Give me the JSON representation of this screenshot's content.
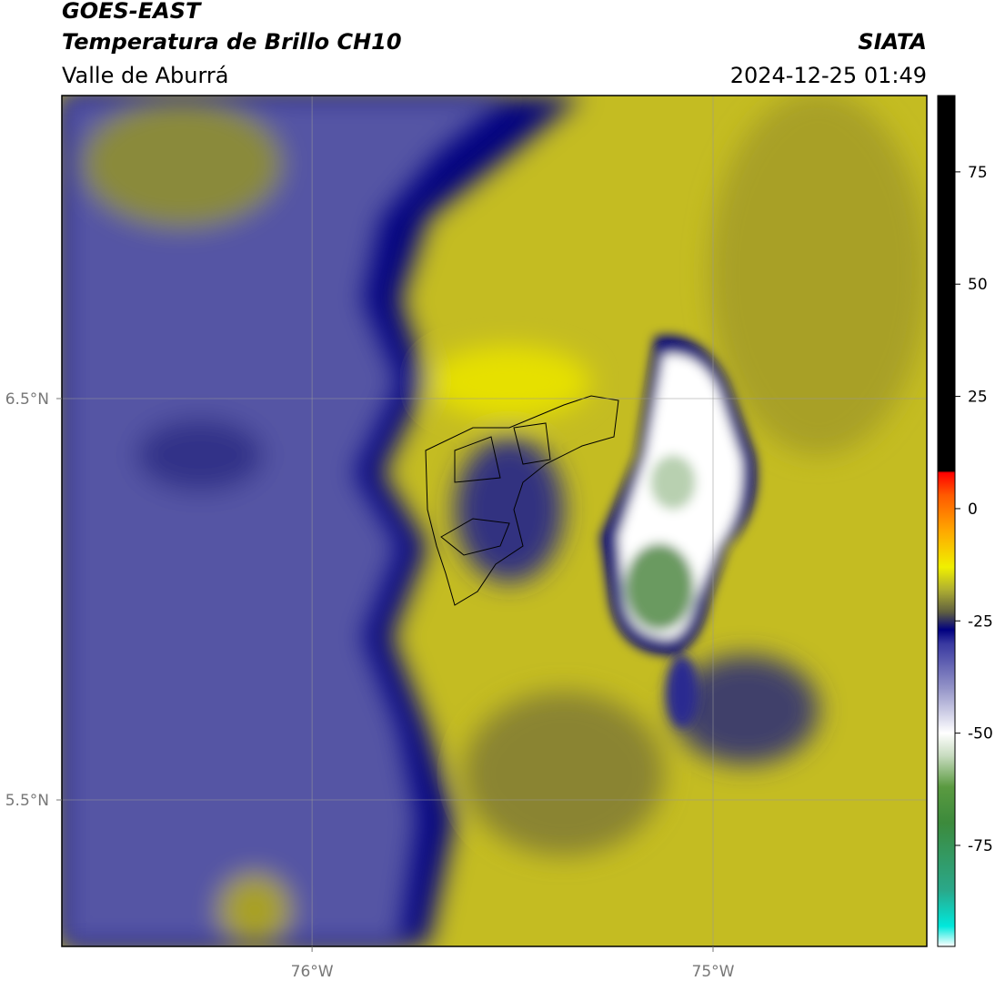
{
  "header": {
    "title": "GOES-EAST",
    "subtitle": "Temperatura de Brillo CH10",
    "region": "Valle de Aburrá",
    "source": "SIATA",
    "datetime": "2024-12-25 01:49"
  },
  "map": {
    "xlim": [
      -76.624,
      -74.467
    ],
    "ylim": [
      5.135,
      7.255
    ],
    "xticks": [
      {
        "value": -76,
        "label": "76°W"
      },
      {
        "value": -75,
        "label": "75°W"
      }
    ],
    "yticks": [
      {
        "value": 6.5,
        "label": "6.5°N"
      },
      {
        "value": 5.5,
        "label": "5.5°N"
      }
    ],
    "grid": true
  },
  "colorbar": {
    "lim": [
      -97.5,
      92
    ],
    "ticks": [
      75,
      50,
      25,
      0,
      -25,
      -50,
      -75
    ],
    "stops": [
      {
        "value": -97.5,
        "color": "#ffffff"
      },
      {
        "value": -93,
        "color": "#00e8dc"
      },
      {
        "value": -85,
        "color": "#2aa88a"
      },
      {
        "value": -70,
        "color": "#3c8a3c"
      },
      {
        "value": -62,
        "color": "#5a9a40"
      },
      {
        "value": -55,
        "color": "#c8dcc0"
      },
      {
        "value": -50,
        "color": "#ffffff"
      },
      {
        "value": -40,
        "color": "#9494c8"
      },
      {
        "value": -30,
        "color": "#3838a0"
      },
      {
        "value": -27,
        "color": "#000080"
      },
      {
        "value": -23,
        "color": "#606040"
      },
      {
        "value": -18,
        "color": "#b0b030"
      },
      {
        "value": -13,
        "color": "#f0f000"
      },
      {
        "value": -5,
        "color": "#ffa800"
      },
      {
        "value": 3,
        "color": "#ff5a00"
      },
      {
        "value": 8,
        "color": "#ff0000"
      },
      {
        "value": 8.4,
        "color": "#000000"
      },
      {
        "value": 92,
        "color": "#000000"
      }
    ]
  }
}
